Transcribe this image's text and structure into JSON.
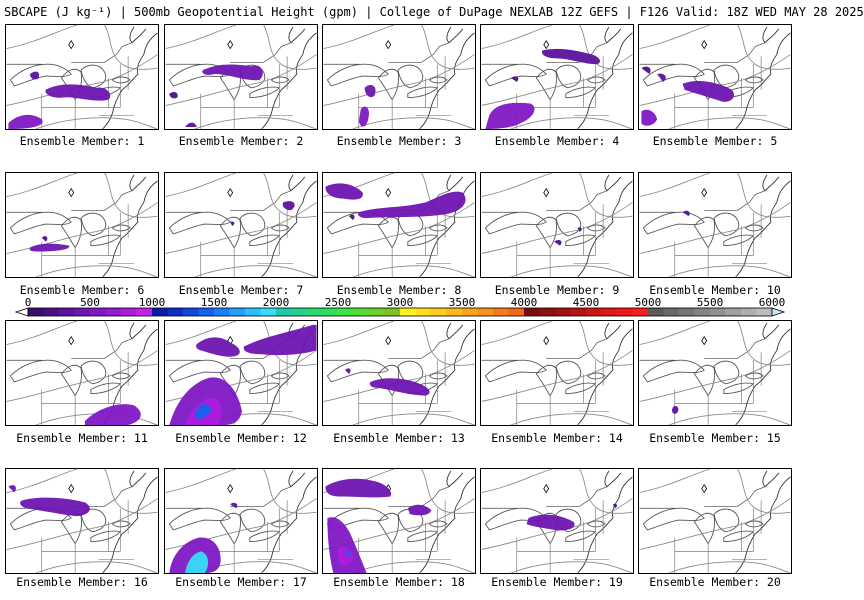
{
  "title": "SBCAPE (J kg⁻¹) | 500mb Geopotential Height (gpm) | College of DuPage NEXLAB 12Z GEFS | F126 Valid: 18Z WED MAY 28 2025",
  "member_label_prefix": "Ensemble Member: ",
  "members": [
    "1",
    "2",
    "3",
    "4",
    "5",
    "6",
    "7",
    "8",
    "9",
    "10",
    "11",
    "12",
    "13",
    "14",
    "15",
    "16",
    "17",
    "18",
    "19",
    "20"
  ],
  "colorbar": {
    "tick_labels": [
      "0",
      "500",
      "1000",
      "1500",
      "2000",
      "2500",
      "3000",
      "3500",
      "4000",
      "4500",
      "5000",
      "5500",
      "6000"
    ],
    "min": 0,
    "max": 6000,
    "bin_size": 125,
    "bin_colors": [
      "#3a0d6e",
      "#4b0f85",
      "#5c129c",
      "#6e15b2",
      "#8018c4",
      "#961ad2",
      "#ad1cdd",
      "#c61fe6",
      "#0a1aa8",
      "#0d2fc4",
      "#1048dc",
      "#1463ee",
      "#1a80f8",
      "#22a0fb",
      "#2bc0fc",
      "#36dcf8",
      "#20c9a8",
      "#22d28e",
      "#26db72",
      "#2ee05a",
      "#3ae442",
      "#54dd34",
      "#6ccf2c",
      "#7ec226",
      "#fbf21a",
      "#fde01a",
      "#fdcc1a",
      "#fdb81a",
      "#fba41a",
      "#f8901a",
      "#f57c1a",
      "#f2681a",
      "#7a0e0e",
      "#8e1010",
      "#a21212",
      "#b61414",
      "#ca1616",
      "#de1818",
      "#ee1a1a",
      "#fb1c1c",
      "#5a5a5a",
      "#686868",
      "#767676",
      "#848484",
      "#929292",
      "#a0a0a0",
      "#aeaeae",
      "#bcbcbc"
    ]
  }
}
